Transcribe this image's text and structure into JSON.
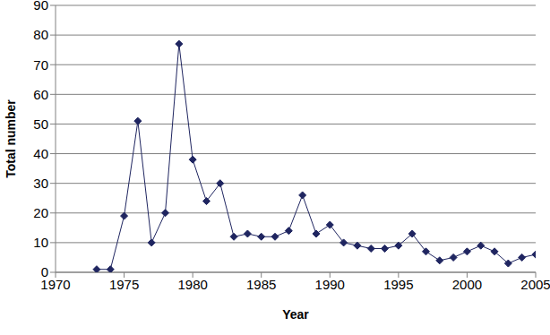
{
  "chart_data": {
    "type": "line",
    "x_label": "Year",
    "y_label": "Total number",
    "x": [
      1973,
      1974,
      1975,
      1976,
      1977,
      1978,
      1979,
      1980,
      1981,
      1982,
      1983,
      1984,
      1985,
      1986,
      1987,
      1988,
      1989,
      1990,
      1991,
      1992,
      1993,
      1994,
      1995,
      1996,
      1997,
      1998,
      1999,
      2000,
      2001,
      2002,
      2003,
      2004,
      2005
    ],
    "values": [
      1,
      1,
      19,
      51,
      10,
      20,
      77,
      38,
      24,
      30,
      12,
      13,
      12,
      12,
      14,
      26,
      13,
      16,
      10,
      9,
      8,
      8,
      9,
      13,
      7,
      4,
      5,
      7,
      9,
      7,
      3,
      5,
      6
    ],
    "color": "#1f2560",
    "marker": "diamond",
    "xlim": [
      1970,
      2005
    ],
    "xticks": [
      1970,
      1975,
      1980,
      1985,
      1990,
      1995,
      2000,
      2005
    ],
    "ylim": [
      0,
      90
    ],
    "yticks": [
      0,
      10,
      20,
      30,
      40,
      50,
      60,
      70,
      80,
      90
    ],
    "grid": true
  }
}
